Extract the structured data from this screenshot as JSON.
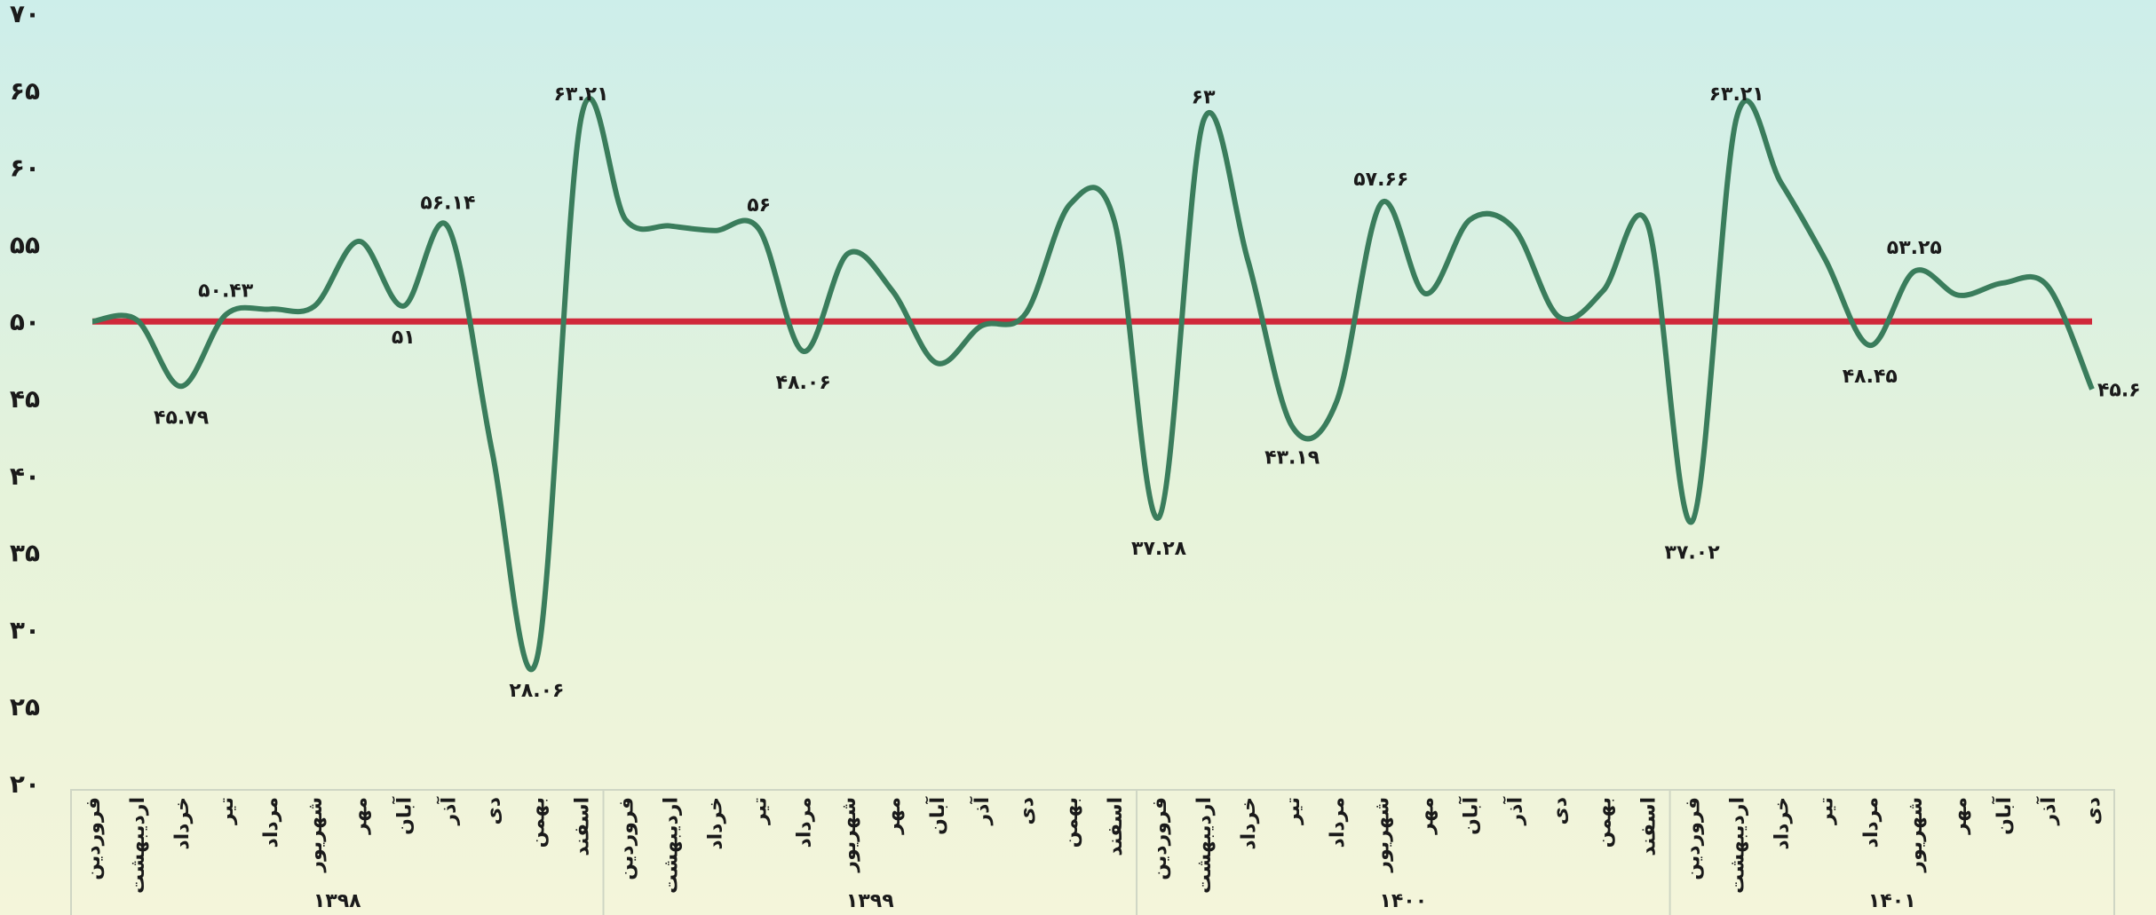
{
  "chart_data": {
    "type": "line",
    "groups": [
      {
        "label": "۱۳۹۸",
        "categories": [
          "فروردین",
          "اردیبهشت",
          "خرداد",
          "تیر",
          "مرداد",
          "شهریور",
          "مهر",
          "آبان",
          "آذر",
          "دی",
          "بهمن",
          "اسفند"
        ]
      },
      {
        "label": "۱۳۹۹",
        "categories": [
          "فروردین",
          "اردیبهشت",
          "خرداد",
          "تیر",
          "مرداد",
          "شهریور",
          "مهر",
          "آبان",
          "آذر",
          "دی",
          "بهمن",
          "اسفند"
        ]
      },
      {
        "label": "۱۴۰۰",
        "categories": [
          "فروردین",
          "اردیبهشت",
          "خرداد",
          "تیر",
          "مرداد",
          "شهریور",
          "مهر",
          "آبان",
          "آذر",
          "دی",
          "بهمن",
          "اسفند"
        ]
      },
      {
        "label": "۱۴۰۱",
        "categories": [
          "فروردین",
          "اردیبهشت",
          "خرداد",
          "تیر",
          "مرداد",
          "شهریور",
          "مهر",
          "آبان",
          "آذر",
          "دی"
        ]
      }
    ],
    "series": [
      {
        "color": "#3a7d5c",
        "values": [
          50,
          50.1,
          45.79,
          50.43,
          50.8,
          51,
          55.2,
          51,
          56.14,
          41.5,
          28.06,
          63.21,
          56.6,
          56.2,
          55.9,
          56,
          48.06,
          54.4,
          52,
          47.3,
          49.7,
          50.5,
          57.6,
          56.5,
          37.28,
          63,
          54,
          43.19,
          44.8,
          57.66,
          51.8,
          56.6,
          56,
          50.3,
          52,
          56.3,
          37.02,
          63.21,
          59,
          54,
          48.45,
          53.25,
          51.7,
          52.5,
          52.3,
          45.6
        ],
        "value_labels": [
          null,
          null,
          "۴۵.۷۹",
          "۵۰.۴۳",
          null,
          null,
          null,
          "۵۱",
          "۵۶.۱۴",
          null,
          "۲۸.۰۶",
          "۶۳.۲۱",
          null,
          null,
          null,
          "۵۶",
          "۴۸.۰۶",
          null,
          null,
          null,
          null,
          null,
          null,
          null,
          "۳۷.۲۸",
          "۶۳",
          null,
          "۴۳.۱۹",
          null,
          "۵۷.۶۶",
          null,
          null,
          null,
          null,
          null,
          null,
          "۳۷.۰۲",
          "۶۳.۲۱",
          null,
          null,
          "۴۸.۴۵",
          "۵۳.۲۵",
          null,
          null,
          null,
          "۴۵.۶"
        ]
      }
    ],
    "reference_line": {
      "value": 50,
      "color": "#d0283a"
    },
    "ylim": [
      20,
      70
    ],
    "yticks": [
      {
        "value": 20,
        "label": "۲۰"
      },
      {
        "value": 25,
        "label": "۲۵"
      },
      {
        "value": 30,
        "label": "۳۰"
      },
      {
        "value": 35,
        "label": "۳۵"
      },
      {
        "value": 40,
        "label": "۴۰"
      },
      {
        "value": 45,
        "label": "۴۵"
      },
      {
        "value": 50,
        "label": "۵۰"
      },
      {
        "value": 55,
        "label": "۵۵"
      },
      {
        "value": 60,
        "label": "۶۰"
      },
      {
        "value": 65,
        "label": "۶۵"
      },
      {
        "value": 70,
        "label": "۷۰"
      }
    ]
  }
}
